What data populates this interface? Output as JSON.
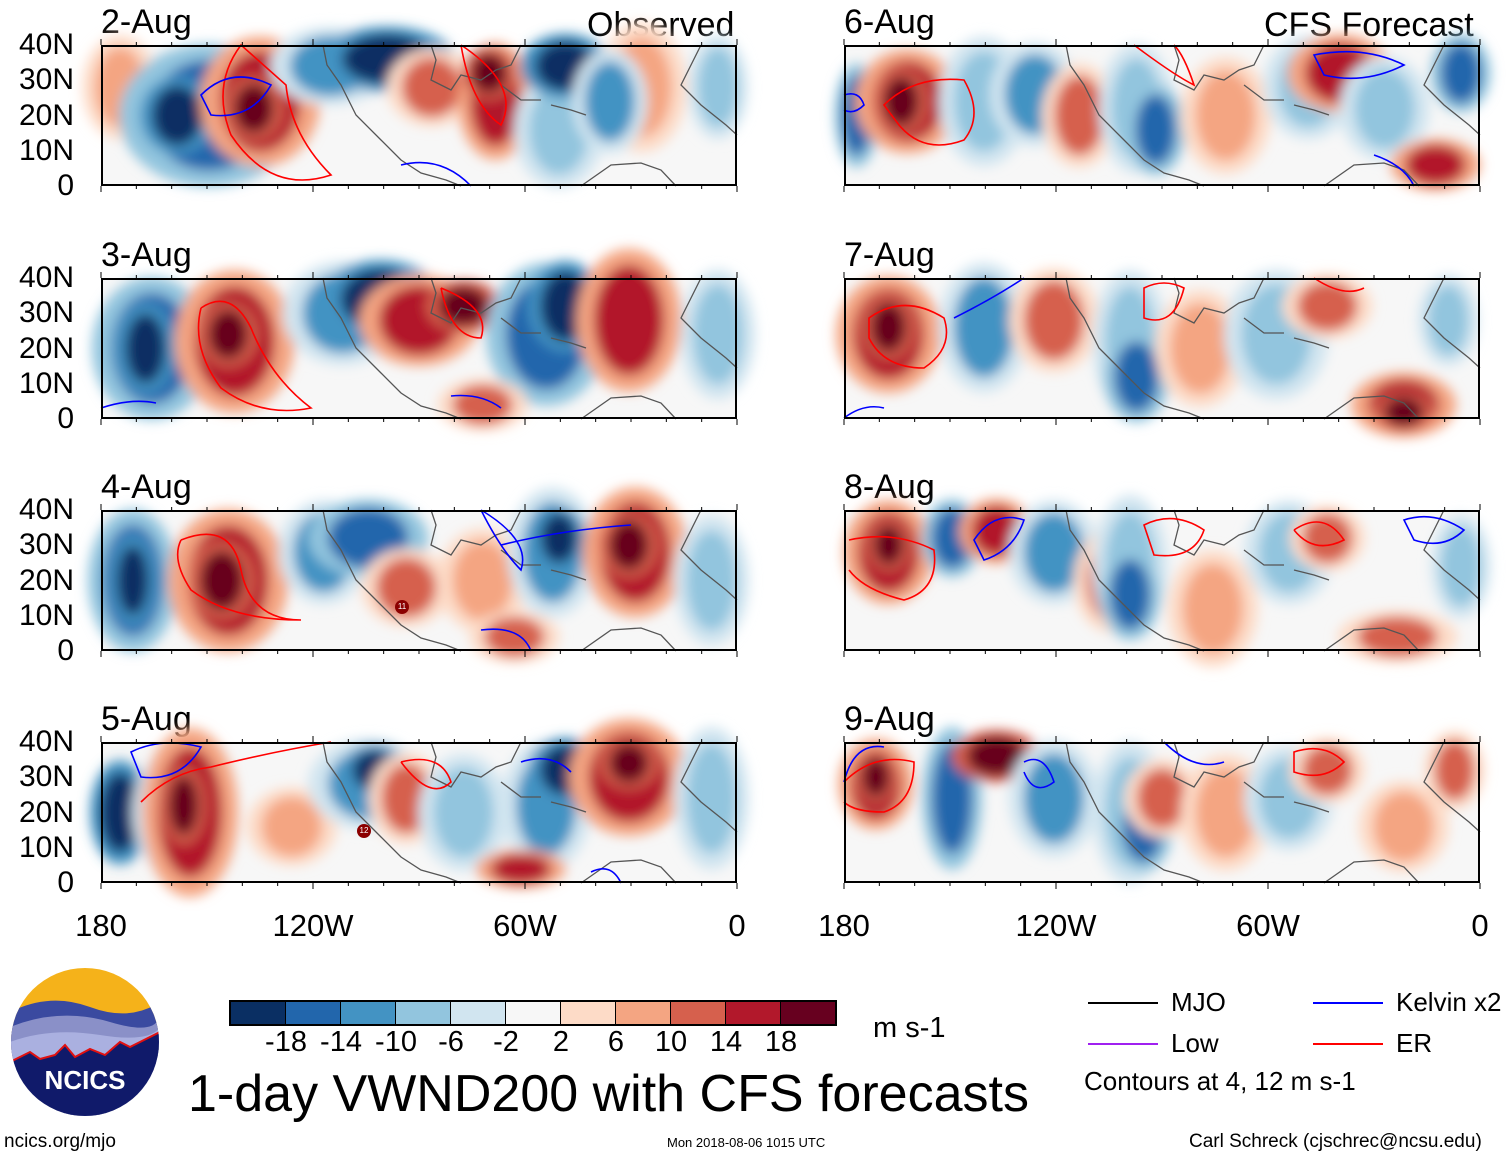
{
  "headers": {
    "observed": "Observed",
    "forecast": "CFS Forecast"
  },
  "panels": [
    {
      "date": "2-Aug",
      "column": "observed"
    },
    {
      "date": "3-Aug",
      "column": "observed"
    },
    {
      "date": "4-Aug",
      "column": "observed"
    },
    {
      "date": "5-Aug",
      "column": "observed"
    },
    {
      "date": "6-Aug",
      "column": "forecast"
    },
    {
      "date": "7-Aug",
      "column": "forecast"
    },
    {
      "date": "8-Aug",
      "column": "forecast"
    },
    {
      "date": "9-Aug",
      "column": "forecast"
    }
  ],
  "lat_labels": [
    "40N",
    "30N",
    "20N",
    "10N",
    "0"
  ],
  "lon_labels": [
    "180",
    "120W",
    "60W",
    "0"
  ],
  "storm_markers": [
    {
      "panel": "4-Aug",
      "label": "11"
    },
    {
      "panel": "5-Aug",
      "label": "12"
    }
  ],
  "colorbar": {
    "colors": [
      "#0a2f63",
      "#2266ac",
      "#4393c3",
      "#92c5de",
      "#d1e5f0",
      "#f7f7f7",
      "#fddbc7",
      "#f4a582",
      "#d6604d",
      "#b2182b",
      "#67001f"
    ],
    "labels": [
      "-18",
      "-14",
      "-10",
      "-6",
      "-2",
      "2",
      "6",
      "10",
      "14",
      "18"
    ],
    "units": "m s-1"
  },
  "legend": {
    "items": [
      {
        "label": "MJO",
        "color": "#000000"
      },
      {
        "label": "Kelvin x2",
        "color": "#0000ff"
      },
      {
        "label": "Low",
        "color": "#a020f0"
      },
      {
        "label": "ER",
        "color": "#ff0000"
      }
    ],
    "note": "Contours at 4, 12 m s-1"
  },
  "title": "1-day VWND200 with CFS forecasts",
  "logo_text": "NCICS",
  "footer": {
    "left": "ncics.org/mjo",
    "center": "Mon 2018-08-06 1015 UTC",
    "right": "Carl Schreck (cjschrec@ncsu.edu)"
  }
}
